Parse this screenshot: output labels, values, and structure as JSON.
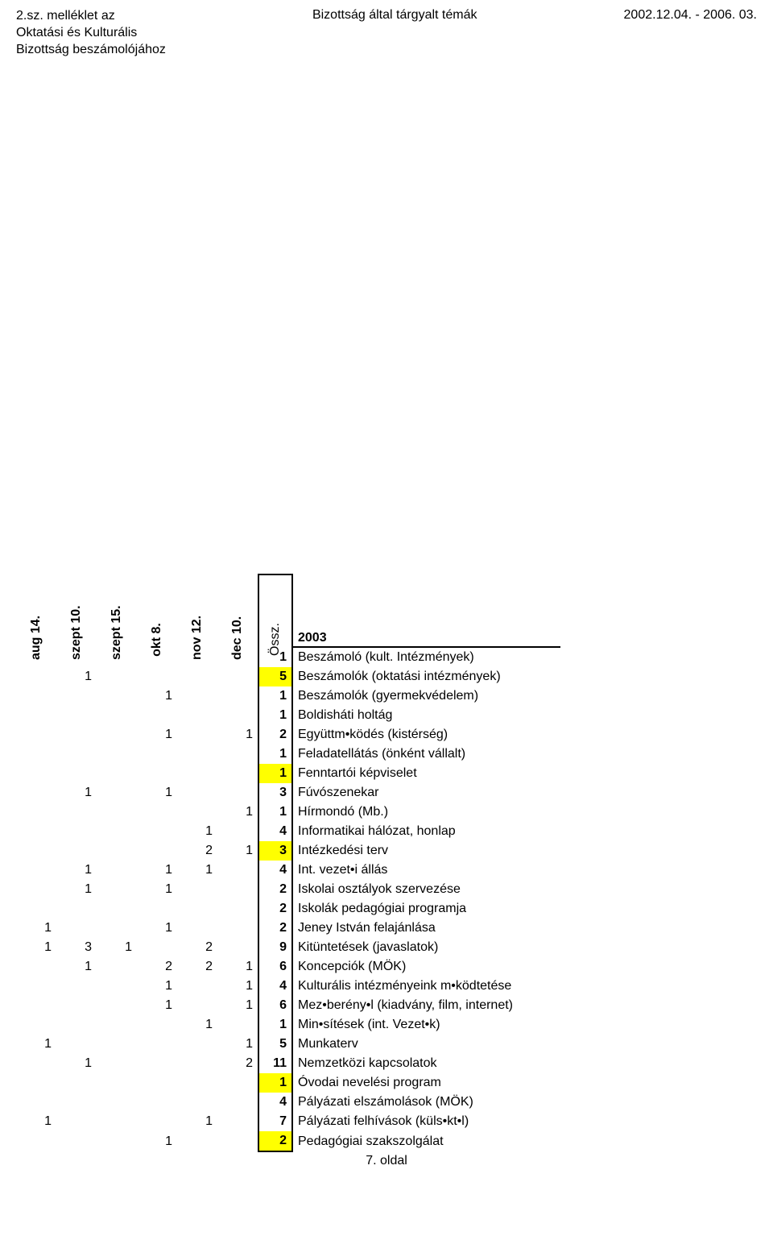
{
  "header": {
    "left_line1": "2.sz. melléklet az",
    "left_line2": "Oktatási és Kulturális",
    "left_line3": "Bizottság beszámolójához",
    "center": "Bizottság által tárgyalt témák",
    "right": "2002.12.04. - 2006. 03."
  },
  "columns": [
    "aug 14.",
    "szept 10.",
    "szept 15.",
    "okt 8.",
    "nov 12.",
    "dec 10."
  ],
  "ossz_label": "Össz.",
  "year": "2003",
  "rows": [
    {
      "cells": [
        "",
        "",
        "",
        "",
        "",
        ""
      ],
      "ossz": "1",
      "hl": false,
      "label": "Beszámoló (kult. Intézmények)"
    },
    {
      "cells": [
        "",
        "1",
        "",
        "",
        "",
        ""
      ],
      "ossz": "5",
      "hl": true,
      "label": "Beszámolók (oktatási intézmények)"
    },
    {
      "cells": [
        "",
        "",
        "",
        "1",
        "",
        ""
      ],
      "ossz": "1",
      "hl": false,
      "label": "Beszámolók (gyermekvédelem)"
    },
    {
      "cells": [
        "",
        "",
        "",
        "",
        "",
        ""
      ],
      "ossz": "1",
      "hl": false,
      "label": "Boldisháti holtág"
    },
    {
      "cells": [
        "",
        "",
        "",
        "1",
        "",
        "1"
      ],
      "ossz": "2",
      "hl": false,
      "label": "Együttm•ködés (kistérség)"
    },
    {
      "cells": [
        "",
        "",
        "",
        "",
        "",
        ""
      ],
      "ossz": "1",
      "hl": false,
      "label": "Feladatellátás (önként vállalt)"
    },
    {
      "cells": [
        "",
        "",
        "",
        "",
        "",
        ""
      ],
      "ossz": "1",
      "hl": true,
      "label": "Fenntartói képviselet"
    },
    {
      "cells": [
        "",
        "1",
        "",
        "1",
        "",
        ""
      ],
      "ossz": "3",
      "hl": false,
      "label": "Fúvószenekar"
    },
    {
      "cells": [
        "",
        "",
        "",
        "",
        "",
        "1"
      ],
      "ossz": "1",
      "hl": false,
      "label": "Hírmondó (Mb.)"
    },
    {
      "cells": [
        "",
        "",
        "",
        "",
        "1",
        ""
      ],
      "ossz": "4",
      "hl": false,
      "label": "Informatikai hálózat, honlap"
    },
    {
      "cells": [
        "",
        "",
        "",
        "",
        "2",
        "1"
      ],
      "ossz": "3",
      "hl": true,
      "label": "Intézkedési terv"
    },
    {
      "cells": [
        "",
        "1",
        "",
        "1",
        "1",
        ""
      ],
      "ossz": "4",
      "hl": false,
      "label": "Int. vezet•i állás"
    },
    {
      "cells": [
        "",
        "1",
        "",
        "1",
        "",
        ""
      ],
      "ossz": "2",
      "hl": false,
      "label": "Iskolai osztályok szervezése"
    },
    {
      "cells": [
        "",
        "",
        "",
        "",
        "",
        ""
      ],
      "ossz": "2",
      "hl": false,
      "label": "Iskolák pedagógiai programja"
    },
    {
      "cells": [
        "1",
        "",
        "",
        "1",
        "",
        ""
      ],
      "ossz": "2",
      "hl": false,
      "label": "Jeney István felajánlása"
    },
    {
      "cells": [
        "1",
        "3",
        "1",
        "",
        "2",
        ""
      ],
      "ossz": "9",
      "hl": false,
      "label": "Kitüntetések (javaslatok)"
    },
    {
      "cells": [
        "",
        "1",
        "",
        "2",
        "2",
        "1"
      ],
      "ossz": "6",
      "hl": false,
      "label": "Koncepciók (MÖK)"
    },
    {
      "cells": [
        "",
        "",
        "",
        "1",
        "",
        "1"
      ],
      "ossz": "4",
      "hl": false,
      "label": "Kulturális intézményeink m•ködtetése"
    },
    {
      "cells": [
        "",
        "",
        "",
        "1",
        "",
        "1"
      ],
      "ossz": "6",
      "hl": false,
      "label": "Mez•berény•l (kiadvány, film, internet)"
    },
    {
      "cells": [
        "",
        "",
        "",
        "",
        "1",
        ""
      ],
      "ossz": "1",
      "hl": false,
      "label": "Min•sítések (int. Vezet•k)"
    },
    {
      "cells": [
        "1",
        "",
        "",
        "",
        "",
        "1"
      ],
      "ossz": "5",
      "hl": false,
      "label": "Munkaterv"
    },
    {
      "cells": [
        "",
        "1",
        "",
        "",
        "",
        "2"
      ],
      "ossz": "11",
      "hl": false,
      "label": "Nemzetközi kapcsolatok"
    },
    {
      "cells": [
        "",
        "",
        "",
        "",
        "",
        ""
      ],
      "ossz": "1",
      "hl": true,
      "label": "Óvodai nevelési program"
    },
    {
      "cells": [
        "",
        "",
        "",
        "",
        "",
        ""
      ],
      "ossz": "4",
      "hl": false,
      "label": "Pályázati elszámolások (MÖK)"
    },
    {
      "cells": [
        "1",
        "",
        "",
        "",
        "1",
        ""
      ],
      "ossz": "7",
      "hl": false,
      "label": "Pályázati felhívások (küls•kt•l)"
    },
    {
      "cells": [
        "",
        "",
        "",
        "1",
        "",
        ""
      ],
      "ossz": "2",
      "hl": true,
      "label": "Pedagógiai szakszolgálat"
    }
  ],
  "footer": "7. oldal",
  "colors": {
    "highlight": "#ffff00",
    "text": "#000000",
    "background": "#ffffff"
  }
}
